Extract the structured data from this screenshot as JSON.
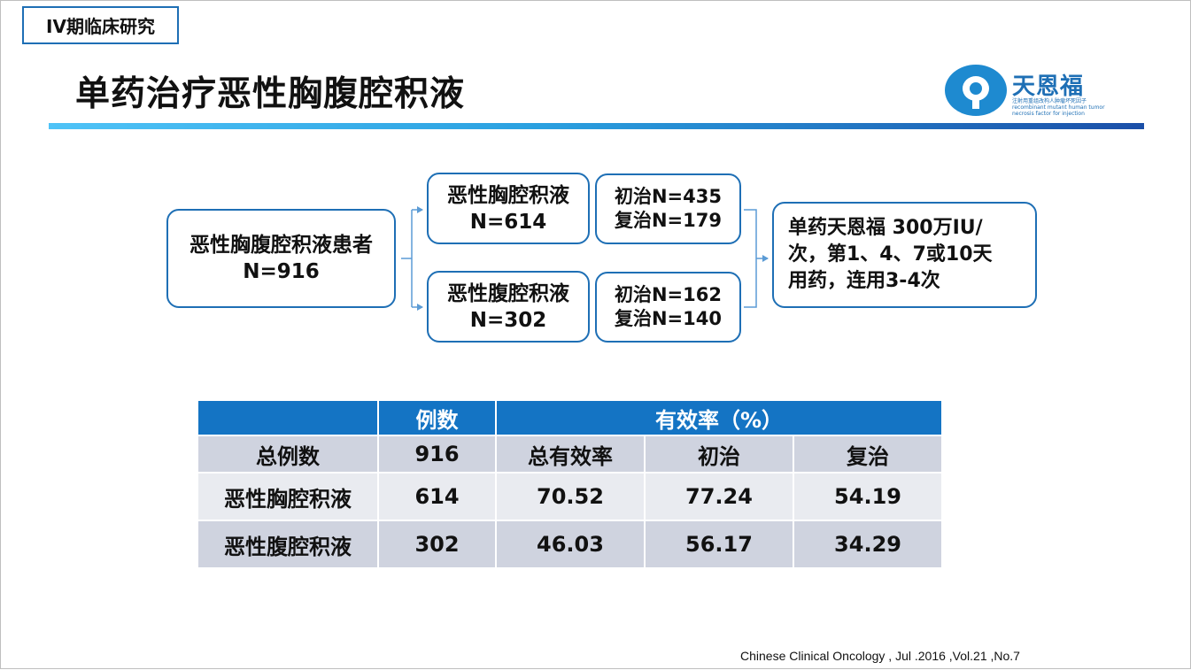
{
  "tag": "IV期临床研究",
  "title": "单药治疗恶性胸腹腔积液",
  "logo": {
    "name": "天恩福",
    "subtitle": "注射用重组改构人肿瘤坏死因子 recombinant mutant human tumor necrosis factor for injection",
    "brand_color": "#1e8ad0"
  },
  "flow": {
    "total": {
      "line1": "恶性胸腹腔积液患者",
      "line2": "N=916"
    },
    "pleural": {
      "line1": "恶性胸腔积液",
      "line2": "N=614"
    },
    "ascites": {
      "line1": "恶性腹腔积液",
      "line2": "N=302"
    },
    "pleural_split": {
      "line1": "初治N=435",
      "line2": "复治N=179"
    },
    "ascites_split": {
      "line1": "初治N=162",
      "line2": "复治N=140"
    },
    "regimen": {
      "line1": "单药天恩福 300万IU/",
      "line2": "次，第1、4、7或10天",
      "line3": "用药，连用3-4次"
    }
  },
  "table": {
    "header": {
      "blank": "",
      "cases": "例数",
      "efficacy": "有效率（%）"
    },
    "subheader": {
      "label": "总例数",
      "cases": "916",
      "overall": "总有效率",
      "initial": "初治",
      "retreated": "复治"
    },
    "rows": [
      {
        "label": "恶性胸腔积液",
        "cases": "614",
        "overall": "70.52",
        "initial": "77.24",
        "retreated": "54.19"
      },
      {
        "label": "恶性腹腔积液",
        "cases": "302",
        "overall": "46.03",
        "initial": "56.17",
        "retreated": "34.29"
      }
    ]
  },
  "citation": "Chinese Clinical Oncology , Jul .2016 ,Vol.21 ,No.7",
  "colors": {
    "accent": "#1e6fb5",
    "table_header": "#1474c4",
    "row_light": "#e9ebf0",
    "row_dark": "#cfd3df"
  }
}
